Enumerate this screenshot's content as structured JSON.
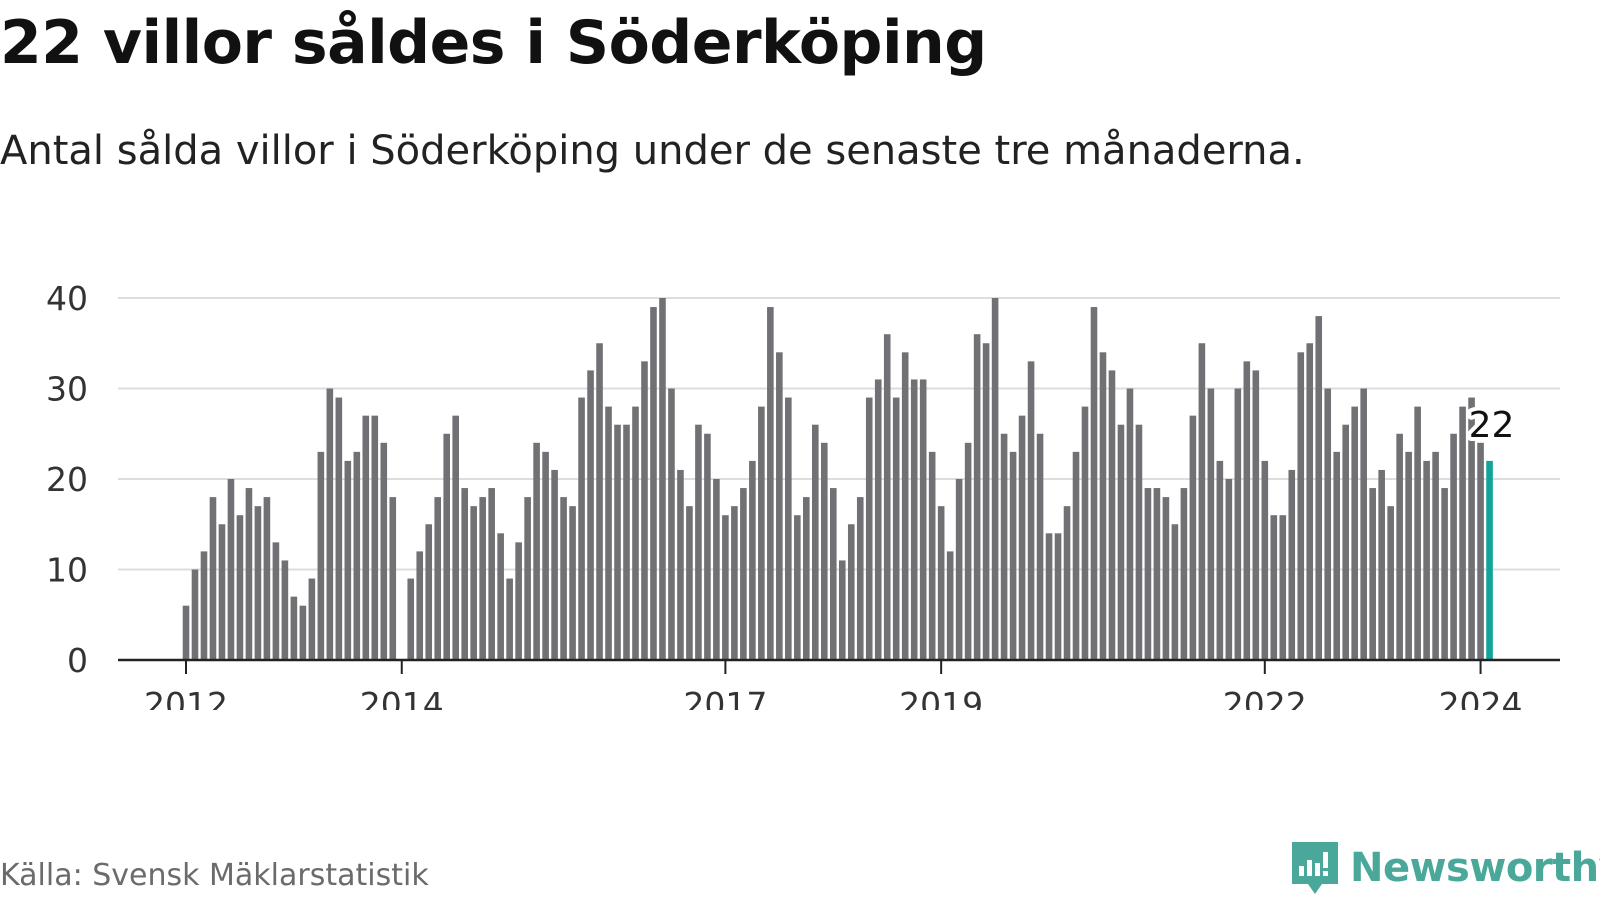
{
  "title": "22 villor såldes i Söderköping",
  "subtitle": "Antal sålda villor i Söderköping under de senaste tre månaderna.",
  "source": "Källa: Svensk Mäklarstatistik",
  "logo": {
    "text": "Newsworthy",
    "icon": "newsworthy-logo-icon"
  },
  "colors": {
    "bar": "#717175",
    "highlight": "#13a39b",
    "grid": "#dddddd",
    "axis": "#222222",
    "logo": "#4aa89a"
  },
  "chart_data": {
    "type": "bar",
    "title": "22 villor såldes i Söderköping",
    "xlabel": "",
    "ylabel": "",
    "ylim": [
      0,
      40
    ],
    "yticks": [
      "0",
      "10",
      "20",
      "30",
      "40"
    ],
    "grid": true,
    "start_month": "2012-01",
    "x_ticks": [
      {
        "label": "2012",
        "index": 0
      },
      {
        "label": "2014",
        "index": 24
      },
      {
        "label": "2017",
        "index": 60
      },
      {
        "label": "2019",
        "index": 84
      },
      {
        "label": "2022",
        "index": 120
      },
      {
        "label": "2024",
        "index": 144
      }
    ],
    "values": [
      6,
      10,
      12,
      18,
      15,
      20,
      16,
      19,
      17,
      18,
      13,
      11,
      7,
      6,
      9,
      23,
      30,
      29,
      22,
      23,
      27,
      27,
      24,
      18,
      null,
      9,
      12,
      15,
      18,
      25,
      27,
      19,
      17,
      18,
      19,
      14,
      9,
      13,
      18,
      24,
      23,
      21,
      18,
      17,
      29,
      32,
      35,
      28,
      26,
      26,
      28,
      33,
      39,
      40,
      30,
      21,
      17,
      26,
      25,
      20,
      16,
      17,
      19,
      22,
      28,
      39,
      34,
      29,
      16,
      18,
      26,
      24,
      19,
      11,
      15,
      18,
      29,
      31,
      36,
      29,
      34,
      31,
      31,
      23,
      17,
      12,
      20,
      24,
      36,
      35,
      40,
      25,
      23,
      27,
      33,
      25,
      14,
      14,
      17,
      23,
      28,
      39,
      34,
      32,
      26,
      30,
      26,
      19,
      19,
      18,
      15,
      19,
      27,
      35,
      30,
      22,
      20,
      30,
      33,
      32,
      22,
      16,
      16,
      21,
      34,
      35,
      38,
      30,
      23,
      26,
      28,
      30,
      19,
      21,
      17,
      25,
      23,
      28,
      22,
      23,
      19,
      25,
      28,
      29,
      24,
      22
    ],
    "highlight_index": 145,
    "annotation": "22"
  }
}
